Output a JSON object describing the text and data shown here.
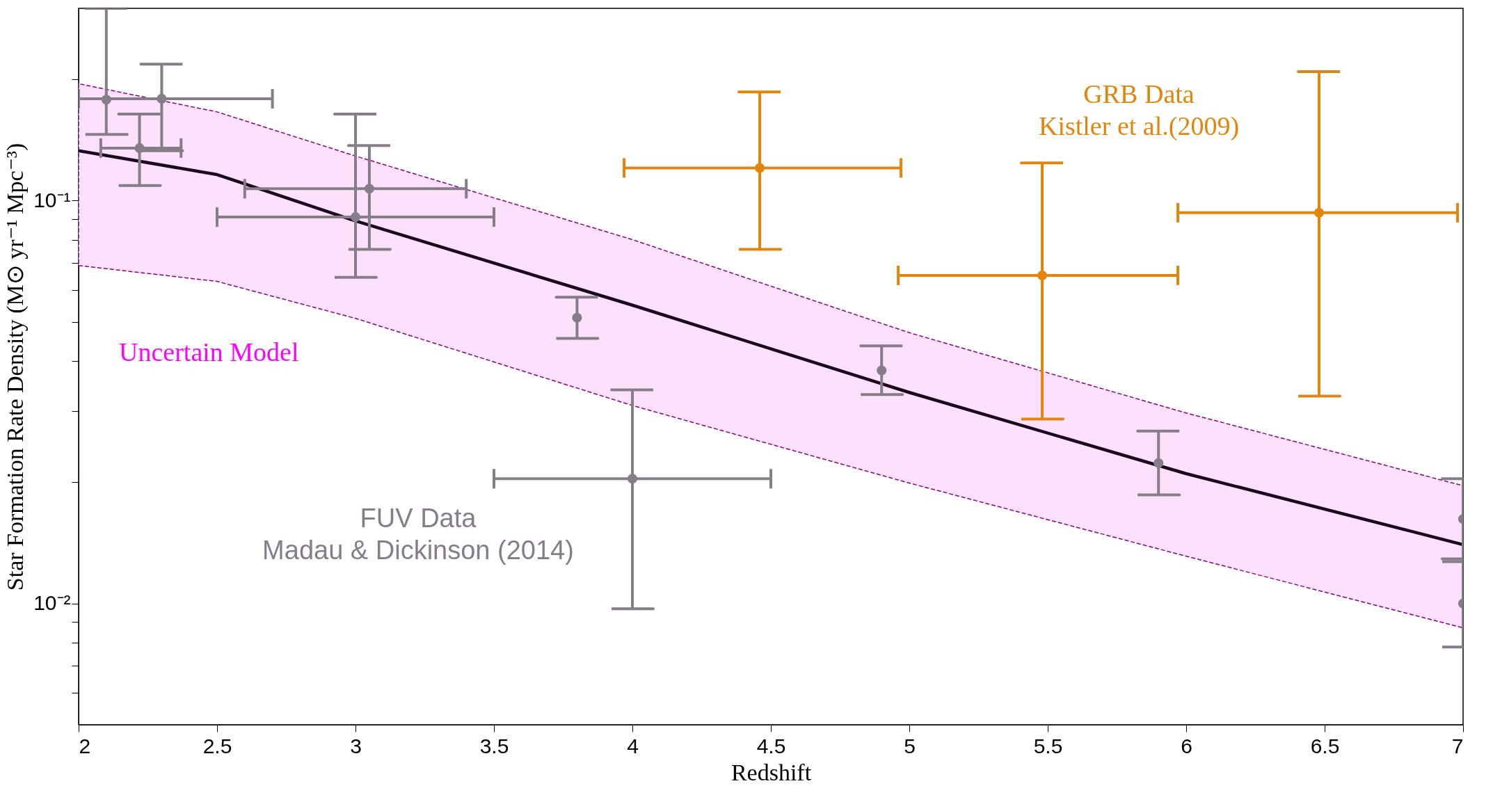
{
  "chart_data": {
    "type": "scatter",
    "xlabel": "Redshift",
    "ylabel": "Star Formation Rate Density (M⊙ yr⁻¹ Mpc⁻³)",
    "xlim": [
      2,
      7
    ],
    "xticks": [
      2,
      2.5,
      3,
      3.5,
      4,
      4.5,
      5,
      5.5,
      6,
      6.5,
      7
    ],
    "ylim": [
      0.005,
      0.3
    ],
    "yticks": [
      {
        "value": 0.006,
        "label": null
      },
      {
        "value": 0.007,
        "label": null
      },
      {
        "value": 0.008,
        "label": null
      },
      {
        "value": 0.009,
        "label": null
      },
      {
        "value": 0.01,
        "label": "10⁻²"
      },
      {
        "value": 0.02,
        "label": null
      },
      {
        "value": 0.03,
        "label": null
      },
      {
        "value": 0.04,
        "label": null
      },
      {
        "value": 0.05,
        "label": null
      },
      {
        "value": 0.06,
        "label": null
      },
      {
        "value": 0.07,
        "label": null
      },
      {
        "value": 0.08,
        "label": null
      },
      {
        "value": 0.09,
        "label": null
      },
      {
        "value": 0.1,
        "label": "10⁻¹"
      },
      {
        "value": 0.2,
        "label": null
      }
    ],
    "log": "y",
    "grid": false,
    "marker": "circle",
    "annotations": [
      "Uncertain Model"
    ],
    "series": [
      {
        "type": "line",
        "marker": "none",
        "color": "#1b0a1e",
        "x": [
          2,
          2.5,
          3,
          4,
          5,
          6,
          7
        ],
        "values": [
          0.133,
          0.116,
          0.089,
          0.055,
          0.0334,
          0.021,
          0.014
        ],
        "lower": [
          0.069,
          0.063,
          0.051,
          0.031,
          0.0199,
          0.0131,
          0.0087
        ],
        "upper": [
          0.195,
          0.166,
          0.129,
          0.08,
          0.047,
          0.0297,
          0.0196
        ]
      },
      {
        "name": "FUV Data\nMadau & Dickinson (2014)",
        "color": "#857d88",
        "x": [
          2.1,
          2.22,
          2.3,
          3.0,
          3.05,
          3.8,
          4.0,
          4.9,
          5.9,
          7.0,
          7.0
        ],
        "values": [
          0.178,
          0.135,
          0.179,
          0.091,
          0.107,
          0.0512,
          0.0204,
          0.0379,
          0.0223,
          0.0162,
          0.01
        ],
        "errors": [
          [
            0.146,
            0.3
          ],
          [
            0.109,
            0.164
          ],
          [
            0.133,
            0.218
          ],
          [
            0.0645,
            0.164
          ],
          [
            0.0757,
            0.137
          ],
          [
            0.0455,
            0.0576
          ],
          [
            0.0097,
            0.0339
          ],
          [
            0.033,
            0.0436
          ],
          [
            0.0186,
            0.0268
          ],
          [
            0.0127,
            0.0204
          ],
          [
            0.0078,
            0.0129
          ]
        ],
        "xerrors": [
          null,
          [
            2.08,
            2.37
          ],
          [
            2.0,
            2.7
          ],
          [
            2.5,
            3.5
          ],
          [
            2.6,
            3.4
          ],
          null,
          [
            3.5,
            4.5
          ],
          null,
          null,
          null,
          null
        ]
      },
      {
        "name": "GRB Data\nKistler et al.(2009)",
        "color": "#e3850b",
        "x": [
          4.46,
          5.48,
          6.48
        ],
        "values": [
          0.1205,
          0.0652,
          0.0933
        ],
        "errors": [
          [
            0.0757,
            0.186
          ],
          [
            0.0287,
            0.124
          ],
          [
            0.0327,
            0.209
          ]
        ],
        "xerrors": [
          [
            3.97,
            4.97
          ],
          [
            4.96,
            5.97
          ],
          [
            5.97,
            6.98
          ]
        ]
      }
    ]
  }
}
